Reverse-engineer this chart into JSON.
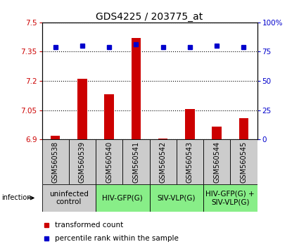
{
  "title": "GDS4225 / 203775_at",
  "samples": [
    "GSM560538",
    "GSM560539",
    "GSM560540",
    "GSM560541",
    "GSM560542",
    "GSM560543",
    "GSM560544",
    "GSM560545"
  ],
  "bar_values": [
    6.92,
    7.21,
    7.13,
    7.42,
    6.905,
    7.055,
    6.965,
    7.01
  ],
  "percentile_values": [
    79,
    80,
    79,
    81,
    79,
    79,
    80,
    79
  ],
  "ylim_left": [
    6.9,
    7.5
  ],
  "ylim_right": [
    0,
    100
  ],
  "yticks_left": [
    6.9,
    7.05,
    7.2,
    7.35,
    7.5
  ],
  "yticks_right": [
    0,
    25,
    50,
    75,
    100
  ],
  "ytick_labels_left": [
    "6.9",
    "7.05",
    "7.2",
    "7.35",
    "7.5"
  ],
  "ytick_labels_right": [
    "0",
    "25",
    "50",
    "75",
    "100%"
  ],
  "bar_color": "#cc0000",
  "dot_color": "#0000cc",
  "bar_base": 6.9,
  "sample_bg_color": "#cccccc",
  "groups": [
    {
      "label": "uninfected\ncontrol",
      "start": 0,
      "end": 2,
      "color": "#cccccc"
    },
    {
      "label": "HIV-GFP(G)",
      "start": 2,
      "end": 4,
      "color": "#88ee88"
    },
    {
      "label": "SIV-VLP(G)",
      "start": 4,
      "end": 6,
      "color": "#88ee88"
    },
    {
      "label": "HIV-GFP(G) +\nSIV-VLP(G)",
      "start": 6,
      "end": 8,
      "color": "#88ee88"
    }
  ],
  "infection_label": "infection",
  "legend_bar_label": "transformed count",
  "legend_dot_label": "percentile rank within the sample",
  "title_fontsize": 10,
  "tick_fontsize": 7.5,
  "group_label_fontsize": 7.5,
  "sample_fontsize": 7,
  "legend_fontsize": 7.5
}
